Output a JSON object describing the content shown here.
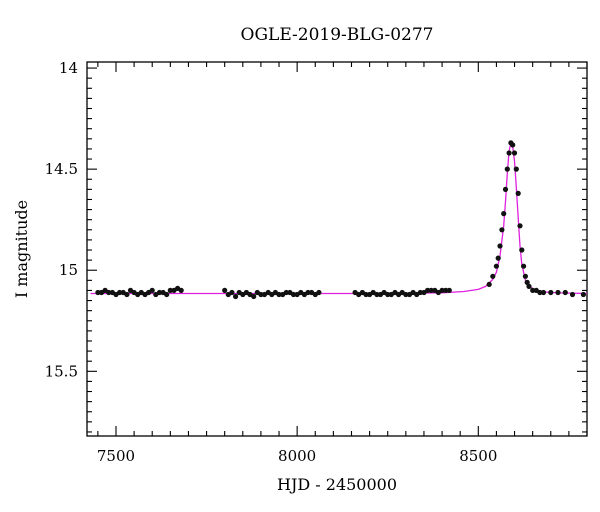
{
  "chart_data": {
    "type": "scatter",
    "title": "OGLE-2019-BLG-0277",
    "xlabel": "HJD - 2450000",
    "ylabel": "I magnitude",
    "xlim": [
      7420,
      8800
    ],
    "ylim": [
      15.82,
      13.97
    ],
    "y_inverted": true,
    "grid": false,
    "xticks": [
      7500,
      8000,
      8500
    ],
    "xtick_labels": [
      "7500",
      "8000",
      "8500"
    ],
    "yticks": [
      14,
      14.5,
      15,
      15.5
    ],
    "ytick_labels": [
      "14",
      "14.5",
      "15",
      "15.5"
    ],
    "colors": {
      "points": "#111111",
      "model": "#e020e0"
    },
    "series": [
      {
        "type": "scatter",
        "x": [
          7450,
          7460,
          7470,
          7480,
          7490,
          7500,
          7510,
          7520,
          7530,
          7540,
          7550,
          7560,
          7570,
          7580,
          7590,
          7600,
          7610,
          7620,
          7630,
          7640,
          7650,
          7660,
          7670,
          7680,
          7800,
          7810,
          7820,
          7830,
          7840,
          7850,
          7860,
          7870,
          7880,
          7890,
          7900,
          7910,
          7920,
          7930,
          7940,
          7950,
          7960,
          7970,
          7980,
          7990,
          8000,
          8010,
          8020,
          8030,
          8040,
          8050,
          8060,
          8160,
          8170,
          8180,
          8190,
          8200,
          8210,
          8220,
          8230,
          8240,
          8250,
          8260,
          8270,
          8280,
          8290,
          8300,
          8310,
          8320,
          8330,
          8340,
          8350,
          8360,
          8370,
          8380,
          8390,
          8400,
          8410,
          8420,
          8530,
          8540,
          8550,
          8555,
          8560,
          8565,
          8570,
          8575,
          8580,
          8585,
          8590,
          8595,
          8600,
          8605,
          8610,
          8615,
          8620,
          8625,
          8630,
          8635,
          8640,
          8650,
          8660,
          8670,
          8680,
          8700,
          8720,
          8740,
          8760,
          8790
        ],
        "y": [
          15.11,
          15.11,
          15.1,
          15.11,
          15.11,
          15.12,
          15.11,
          15.11,
          15.12,
          15.1,
          15.11,
          15.12,
          15.11,
          15.12,
          15.11,
          15.1,
          15.12,
          15.11,
          15.11,
          15.12,
          15.1,
          15.1,
          15.09,
          15.1,
          15.1,
          15.12,
          15.11,
          15.13,
          15.11,
          15.12,
          15.11,
          15.12,
          15.13,
          15.11,
          15.12,
          15.12,
          15.11,
          15.12,
          15.11,
          15.12,
          15.12,
          15.11,
          15.11,
          15.12,
          15.12,
          15.11,
          15.12,
          15.11,
          15.11,
          15.12,
          15.11,
          15.11,
          15.12,
          15.11,
          15.12,
          15.12,
          15.11,
          15.12,
          15.12,
          15.11,
          15.12,
          15.12,
          15.11,
          15.12,
          15.11,
          15.12,
          15.12,
          15.11,
          15.12,
          15.11,
          15.11,
          15.1,
          15.1,
          15.1,
          15.11,
          15.1,
          15.1,
          15.1,
          15.07,
          15.03,
          14.98,
          14.94,
          14.88,
          14.8,
          14.72,
          14.6,
          14.5,
          14.42,
          14.37,
          14.38,
          14.42,
          14.5,
          14.62,
          14.78,
          14.9,
          14.98,
          15.03,
          15.06,
          15.08,
          15.1,
          15.1,
          15.11,
          15.11,
          15.11,
          15.11,
          15.11,
          15.12,
          15.12
        ]
      },
      {
        "type": "line",
        "x": [
          7430,
          7600,
          7800,
          8000,
          8200,
          8400,
          8460,
          8500,
          8520,
          8540,
          8550,
          8560,
          8570,
          8575,
          8580,
          8585,
          8590,
          8595,
          8600,
          8605,
          8610,
          8615,
          8620,
          8630,
          8640,
          8660,
          8680,
          8720,
          8800
        ],
        "y": [
          15.115,
          15.115,
          15.115,
          15.115,
          15.115,
          15.112,
          15.105,
          15.095,
          15.08,
          15.045,
          15.01,
          14.93,
          14.78,
          14.66,
          14.52,
          14.41,
          14.37,
          14.39,
          14.46,
          14.59,
          14.74,
          14.88,
          14.97,
          15.05,
          15.08,
          15.1,
          15.107,
          15.112,
          15.115
        ]
      }
    ]
  }
}
